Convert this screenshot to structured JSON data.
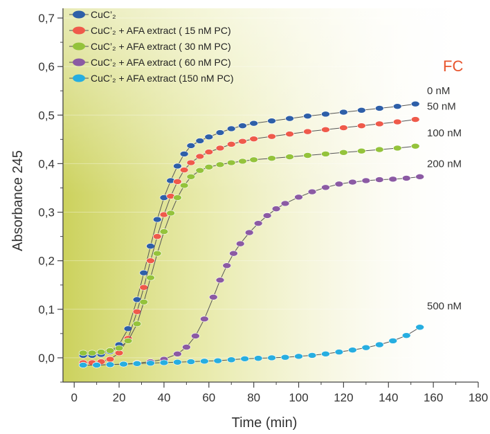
{
  "chart_data": {
    "type": "line",
    "xlabel": "Time (min)",
    "ylabel": "Absorbance 245",
    "xlim": [
      -5,
      180
    ],
    "ylim": [
      -0.05,
      0.72
    ],
    "x_ticks": [
      0,
      20,
      40,
      60,
      80,
      100,
      120,
      140,
      160,
      180
    ],
    "y_ticks": [
      {
        "value": 0.0,
        "label": "0,0"
      },
      {
        "value": 0.1,
        "label": "0,1"
      },
      {
        "value": 0.2,
        "label": "0,2"
      },
      {
        "value": 0.3,
        "label": "0,3"
      },
      {
        "value": 0.4,
        "label": "0,4"
      },
      {
        "value": 0.5,
        "label": "0,5"
      },
      {
        "value": 0.6,
        "label": "0,6"
      },
      {
        "value": 0.7,
        "label": "0,7"
      }
    ],
    "legend_position": "top-left",
    "annotation": {
      "text": "FC",
      "color": "#e8542c"
    },
    "series": [
      {
        "name": "CuC’₂",
        "color": "#2e5fa8",
        "end_label": "0   nM",
        "x": [
          4,
          8,
          12,
          16,
          20,
          24,
          28,
          31,
          34,
          37,
          40,
          43,
          46,
          49,
          52,
          56,
          60,
          65,
          70,
          75,
          80,
          88,
          96,
          104,
          112,
          120,
          128,
          136,
          144,
          152
        ],
        "y": [
          0.005,
          0.005,
          0.007,
          0.013,
          0.027,
          0.06,
          0.12,
          0.175,
          0.23,
          0.285,
          0.33,
          0.365,
          0.395,
          0.42,
          0.437,
          0.447,
          0.455,
          0.464,
          0.472,
          0.478,
          0.483,
          0.488,
          0.493,
          0.498,
          0.502,
          0.506,
          0.51,
          0.514,
          0.518,
          0.523
        ]
      },
      {
        "name": "CuC’₂ + AFA extract (  15 nM PC)",
        "color": "#ef5a4a",
        "end_label": "50   nM",
        "x": [
          4,
          8,
          12,
          16,
          20,
          24,
          28,
          31,
          34,
          37,
          40,
          43,
          46,
          49,
          52,
          56,
          60,
          65,
          70,
          75,
          80,
          88,
          96,
          104,
          112,
          120,
          128,
          136,
          144,
          152
        ],
        "y": [
          -0.01,
          -0.01,
          -0.008,
          -0.003,
          0.01,
          0.04,
          0.095,
          0.145,
          0.2,
          0.25,
          0.295,
          0.333,
          0.363,
          0.387,
          0.402,
          0.415,
          0.424,
          0.432,
          0.44,
          0.446,
          0.451,
          0.456,
          0.461,
          0.466,
          0.47,
          0.474,
          0.478,
          0.482,
          0.486,
          0.491
        ]
      },
      {
        "name": "CuC’₂ + AFA extract (  30 nM PC)",
        "color": "#94c33b",
        "end_label": "100 nM",
        "x": [
          4,
          8,
          12,
          16,
          20,
          24,
          28,
          31,
          34,
          37,
          40,
          43,
          46,
          49,
          52,
          56,
          60,
          65,
          70,
          75,
          80,
          88,
          96,
          104,
          112,
          120,
          128,
          136,
          144,
          152
        ],
        "y": [
          0.01,
          0.01,
          0.012,
          0.015,
          0.02,
          0.035,
          0.07,
          0.115,
          0.165,
          0.215,
          0.26,
          0.298,
          0.33,
          0.355,
          0.373,
          0.386,
          0.393,
          0.398,
          0.402,
          0.405,
          0.408,
          0.411,
          0.414,
          0.417,
          0.42,
          0.423,
          0.426,
          0.429,
          0.432,
          0.436
        ]
      },
      {
        "name": "CuC’₂ + AFA extract (  60 nM PC)",
        "color": "#8b5aa3",
        "end_label": "200 nM",
        "x": [
          4,
          10,
          16,
          22,
          28,
          34,
          40,
          46,
          50,
          54,
          58,
          62,
          65,
          68,
          71,
          74,
          78,
          82,
          86,
          90,
          94,
          100,
          106,
          112,
          118,
          124,
          130,
          136,
          142,
          148,
          154
        ],
        "y": [
          -0.015,
          -0.015,
          -0.014,
          -0.013,
          -0.011,
          -0.008,
          -0.003,
          0.008,
          0.022,
          0.045,
          0.08,
          0.125,
          0.16,
          0.19,
          0.215,
          0.235,
          0.258,
          0.277,
          0.293,
          0.307,
          0.318,
          0.331,
          0.342,
          0.351,
          0.358,
          0.362,
          0.365,
          0.367,
          0.368,
          0.37,
          0.373
        ]
      },
      {
        "name": "CuC’₂ + AFA extract (150 nM PC)",
        "color": "#27aee0",
        "end_label": "500 nM",
        "x": [
          4,
          10,
          16,
          22,
          28,
          34,
          40,
          46,
          52,
          58,
          64,
          70,
          76,
          82,
          88,
          94,
          100,
          106,
          112,
          118,
          124,
          130,
          136,
          142,
          148,
          154
        ],
        "y": [
          -0.015,
          -0.015,
          -0.014,
          -0.013,
          -0.012,
          -0.011,
          -0.01,
          -0.009,
          -0.008,
          -0.007,
          -0.006,
          -0.004,
          -0.002,
          -0.001,
          0.0,
          0.001,
          0.003,
          0.005,
          0.008,
          0.012,
          0.016,
          0.021,
          0.027,
          0.035,
          0.046,
          0.063
        ]
      }
    ]
  }
}
